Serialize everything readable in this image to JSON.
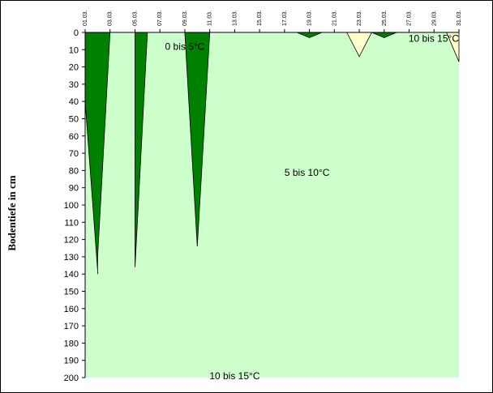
{
  "chart_data": {
    "type": "area",
    "ylabel": "Bodentiefe in cm",
    "ylim": [
      0,
      200
    ],
    "y_reversed": true,
    "y_ticks": [
      0,
      10,
      20,
      30,
      40,
      50,
      60,
      70,
      80,
      90,
      100,
      110,
      120,
      130,
      140,
      150,
      160,
      170,
      180,
      190,
      200
    ],
    "x_ticks": [
      "01.03.",
      "03.03.",
      "05.03.",
      "07.03.",
      "09.03.",
      "11.03.",
      "13.03.",
      "15.03.",
      "17.03.",
      "19.03.",
      "21.03.",
      "23.03.",
      "25.03.",
      "27.03.",
      "29.03.",
      "31.03."
    ],
    "x_range": [
      "01.03.",
      "31.03."
    ],
    "grid": false,
    "background_zone": {
      "label": "5 bis 10°C",
      "color": "#ccffcc"
    },
    "zones": [
      {
        "label": "0 bis 5°C",
        "color": "#008000",
        "regions": [
          [
            [
              "01.03.",
              0
            ],
            [
              "02.03.",
              0
            ],
            [
              "02.03.",
              0
            ],
            [
              "02.03.",
              0
            ],
            [
              "02.03.",
              0
            ]
          ],
          [
            [
              "01.03.",
              0
            ],
            [
              "01.03.",
              40
            ],
            [
              "02.03.",
              138
            ],
            [
              "02.03.",
              140
            ],
            [
              "02.03.",
              130
            ],
            [
              "03.03.",
              0
            ]
          ],
          [
            [
              "05.03.",
              0
            ],
            [
              "05.03.",
              130
            ],
            [
              "05.03.",
              136
            ],
            [
              "06.03.",
              0
            ]
          ],
          [
            [
              "09.03.",
              0
            ],
            [
              "10.03.",
              124
            ],
            [
              "10.03.",
              124
            ],
            [
              "11.03.",
              0
            ]
          ],
          [
            [
              "18.03.",
              0
            ],
            [
              "19.03.",
              3
            ],
            [
              "20.03.",
              0
            ]
          ],
          [
            [
              "24.03.",
              0
            ],
            [
              "25.03.",
              3
            ],
            [
              "26.03.",
              0
            ]
          ]
        ]
      },
      {
        "label": "10 bis 15°C",
        "color": "#ffffcc",
        "regions": [
          [
            [
              "22.03.",
              0
            ],
            [
              "23.03.",
              14
            ],
            [
              "24.03.",
              0
            ]
          ],
          [
            [
              "30.03.",
              0
            ],
            [
              "31.03.",
              17
            ],
            [
              "31.03.",
              0
            ]
          ]
        ]
      }
    ],
    "hidden_label": "10 bis 15°C"
  }
}
